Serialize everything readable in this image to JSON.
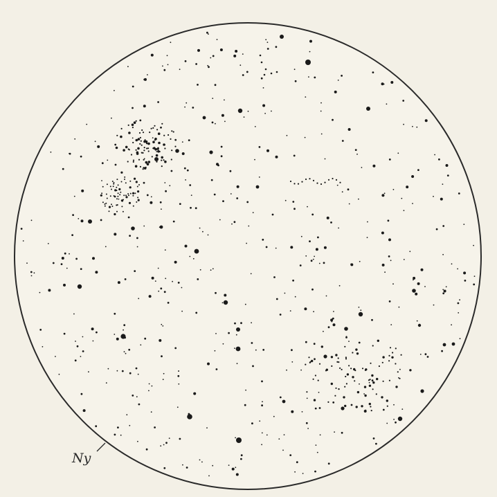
{
  "sketch": {
    "north_label": "Ny",
    "ink_color": "#1a1a1a",
    "paper_color": "#f3f0e6"
  }
}
